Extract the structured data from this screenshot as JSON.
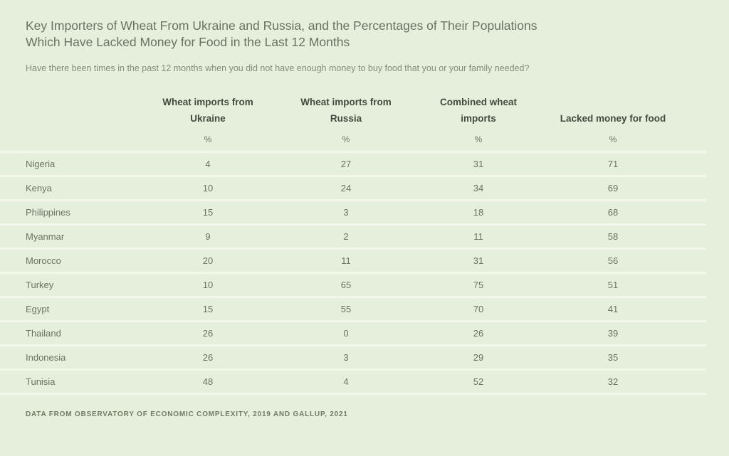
{
  "title": "Key Importers of Wheat From Ukraine and Russia, and the Percentages of Their Populations Which Have Lacked Money for Food in the Last 12 Months",
  "subtitle": "Have there been times in the past 12 months when you did not have enough money to buy food that you or your family needed?",
  "table": {
    "columns": [
      {
        "line1": "Wheat imports from",
        "line2": "Ukraine",
        "unit": "%"
      },
      {
        "line1": "Wheat imports from",
        "line2": "Russia",
        "unit": "%"
      },
      {
        "line1": "Combined wheat",
        "line2": "imports",
        "unit": "%"
      },
      {
        "line1": "",
        "line2": "Lacked money for food",
        "unit": "%"
      }
    ],
    "rows": [
      {
        "country": "Nigeria",
        "values": [
          4,
          27,
          31,
          71
        ]
      },
      {
        "country": "Kenya",
        "values": [
          10,
          24,
          34,
          69
        ]
      },
      {
        "country": "Philippines",
        "values": [
          15,
          3,
          18,
          68
        ]
      },
      {
        "country": "Myanmar",
        "values": [
          9,
          2,
          11,
          58
        ]
      },
      {
        "country": "Morocco",
        "values": [
          20,
          11,
          31,
          56
        ]
      },
      {
        "country": "Turkey",
        "values": [
          10,
          65,
          75,
          51
        ]
      },
      {
        "country": "Egypt",
        "values": [
          15,
          55,
          70,
          41
        ]
      },
      {
        "country": "Thailand",
        "values": [
          26,
          0,
          26,
          39
        ]
      },
      {
        "country": "Indonesia",
        "values": [
          26,
          3,
          29,
          35
        ]
      },
      {
        "country": "Tunisia",
        "values": [
          48,
          4,
          52,
          32
        ]
      }
    ]
  },
  "footer": "DATA FROM OBSERVATORY OF ECONOMIC COMPLEXITY, 2019 AND GALLUP, 2021",
  "colors": {
    "background": "#e5efdb",
    "row_separator": "#f3f8ea",
    "title_text": "#6a7263",
    "header_text": "#454a3f",
    "body_text": "#6a7263",
    "footer_text": "#727b66"
  },
  "chart_data": {
    "type": "table",
    "title": "Key Importers of Wheat From Ukraine and Russia, and the Percentages of Their Populations Which Have Lacked Money for Food in the Last 12 Months",
    "subtitle": "Have there been times in the past 12 months when you did not have enough money to buy food that you or your family needed?",
    "unit": "%",
    "categories": [
      "Nigeria",
      "Kenya",
      "Philippines",
      "Myanmar",
      "Morocco",
      "Turkey",
      "Egypt",
      "Thailand",
      "Indonesia",
      "Tunisia"
    ],
    "series": [
      {
        "name": "Wheat imports from Ukraine",
        "values": [
          4,
          10,
          15,
          9,
          20,
          10,
          15,
          26,
          26,
          48
        ]
      },
      {
        "name": "Wheat imports from Russia",
        "values": [
          27,
          24,
          3,
          2,
          11,
          65,
          55,
          0,
          3,
          4
        ]
      },
      {
        "name": "Combined wheat imports",
        "values": [
          31,
          34,
          18,
          11,
          31,
          75,
          70,
          26,
          29,
          52
        ]
      },
      {
        "name": "Lacked money for food",
        "values": [
          71,
          69,
          68,
          58,
          56,
          51,
          41,
          39,
          35,
          32
        ]
      }
    ],
    "source": "DATA FROM OBSERVATORY OF ECONOMIC COMPLEXITY, 2019 AND GALLUP, 2021"
  }
}
